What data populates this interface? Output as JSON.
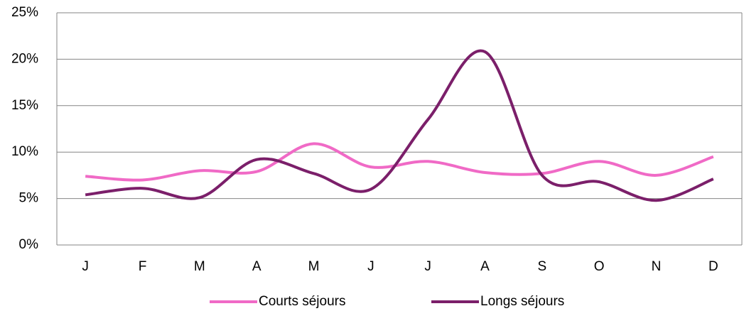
{
  "chart_data": {
    "type": "line",
    "categories": [
      "J",
      "F",
      "M",
      "A",
      "M",
      "J",
      "J",
      "A",
      "S",
      "O",
      "N",
      "D"
    ],
    "series": [
      {
        "name": "Courts séjours",
        "color": "#f06ac6",
        "values": [
          7.4,
          7.0,
          8.0,
          7.9,
          10.9,
          8.4,
          9.0,
          7.8,
          7.7,
          9.0,
          7.5,
          9.5
        ]
      },
      {
        "name": "Longs séjours",
        "color": "#7b1f6a",
        "values": [
          5.4,
          6.1,
          5.1,
          9.2,
          7.7,
          6.0,
          13.5,
          20.8,
          7.5,
          6.8,
          4.8,
          7.1
        ]
      }
    ],
    "ylim": [
      0,
      25
    ],
    "yticks": [
      {
        "value": 0,
        "label": "0%"
      },
      {
        "value": 5,
        "label": "5%"
      },
      {
        "value": 10,
        "label": "10%"
      },
      {
        "value": 15,
        "label": "15%"
      },
      {
        "value": 20,
        "label": "20%"
      },
      {
        "value": 25,
        "label": "25%"
      }
    ],
    "grid": true,
    "smooth": true,
    "legend": "bottom"
  }
}
